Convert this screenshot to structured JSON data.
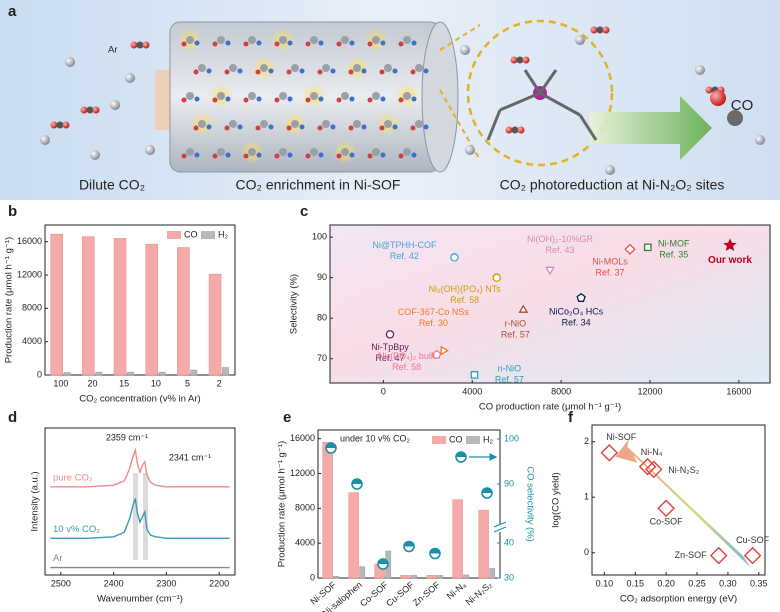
{
  "scheme": {
    "panel": "a",
    "ar": "Ar",
    "co": "CO",
    "captions": [
      "Dilute CO₂",
      "CO₂ enrichment in Ni-SOF",
      "CO₂ photoreduction at Ni-N₂O₂ sites"
    ]
  },
  "chart_data": [
    {
      "panel": "b",
      "type": "bar",
      "categories": [
        "100",
        "20",
        "15",
        "10",
        "5",
        "2"
      ],
      "series": [
        {
          "name": "CO",
          "color": "#f6a9a9",
          "values": [
            16900,
            16600,
            16400,
            15700,
            15300,
            12100
          ]
        },
        {
          "name": "H₂",
          "color": "#b8b8b8",
          "values": [
            300,
            350,
            350,
            350,
            600,
            900
          ]
        }
      ],
      "ylim": [
        0,
        18000
      ],
      "yticks": [
        0,
        4000,
        8000,
        12000,
        16000
      ],
      "xlabel": "CO₂ concentration (v% in Ar)",
      "ylabel": "Production rate (μmol h⁻¹ g⁻¹)",
      "legend": "top-right"
    },
    {
      "panel": "c",
      "type": "scatter",
      "points": [
        {
          "name": "Ni@TPHH-COF",
          "ref": "Ref. 42",
          "x": 3200,
          "y": 95,
          "color": "#3aa6d8",
          "marker": "circle"
        },
        {
          "name": "Ni₂(OH)(PO₄) NTs",
          "ref": "Ref. 58",
          "x": 5100,
          "y": 90,
          "color": "#c8a000",
          "marker": "circle"
        },
        {
          "name": "Ni(OH)₂-10%GR",
          "ref": "Ref. 43",
          "x": 7500,
          "y": 92,
          "color": "#d88aa8",
          "marker": "triangle-down"
        },
        {
          "name": "Ni-MOLs",
          "ref": "Ref. 37",
          "x": 11100,
          "y": 97,
          "color": "#e0504a",
          "marker": "diamond"
        },
        {
          "name": "Ni-MOF",
          "ref": "Ref. 35",
          "x": 11900,
          "y": 97.5,
          "color": "#2e7d32",
          "marker": "square"
        },
        {
          "name": "Our work",
          "x": 15600,
          "y": 98,
          "color": "#c0001c",
          "marker": "star"
        },
        {
          "name": "NiCo₂O₄ HCs",
          "ref": "Ref. 34",
          "x": 8900,
          "y": 85,
          "color": "#0a1a4a",
          "marker": "pentagon"
        },
        {
          "name": "r-NiO",
          "ref": "Ref. 57",
          "x": 6300,
          "y": 82,
          "color": "#b04a30",
          "marker": "triangle"
        },
        {
          "name": "COF-367-Co NSs",
          "ref": "Ref. 30",
          "x": 2700,
          "y": 72,
          "color": "#e87a20",
          "marker": "triangle-right"
        },
        {
          "name": "Ni-TpBpy",
          "ref": "Ref. 47",
          "x": 300,
          "y": 76,
          "color": "#6a1a5a",
          "marker": "circle"
        },
        {
          "name": "Ni₃(PO₄)₂ bulk",
          "ref": "Ref. 58",
          "x": 2400,
          "y": 71,
          "color": "#f07090",
          "marker": "pentagon"
        },
        {
          "name": "n-NiO",
          "ref": "Ref. 57",
          "x": 4100,
          "y": 66,
          "color": "#2aa0c0",
          "marker": "square"
        }
      ],
      "xlim": [
        -2400,
        17400
      ],
      "ylim": [
        64,
        103
      ],
      "xticks": [
        0,
        4000,
        8000,
        12000,
        16000
      ],
      "yticks": [
        70,
        80,
        90,
        100
      ],
      "xlabel": "CO production rate (μmol h⁻¹ g⁻¹)",
      "ylabel": "Selectivity (%)"
    },
    {
      "panel": "d",
      "type": "line",
      "x": [
        2520,
        2450,
        2400,
        2380,
        2370,
        2362,
        2359,
        2355,
        2350,
        2345,
        2341,
        2337,
        2330,
        2320,
        2300,
        2250,
        2180
      ],
      "series": [
        {
          "name": "pure CO₂",
          "color": "#f08a8a",
          "values": [
            6,
            6,
            6.1,
            6.4,
            7.2,
            8.2,
            8.5,
            7.6,
            7.0,
            7.5,
            7.7,
            6.8,
            6.3,
            6.1,
            6,
            6,
            6
          ]
        },
        {
          "name": "10 v% CO₂",
          "color": "#3a9ab8",
          "values": [
            2.5,
            2.5,
            2.6,
            2.9,
            3.8,
            4.9,
            5.2,
            4.2,
            3.6,
            4.0,
            4.3,
            3.1,
            2.7,
            2.6,
            2.5,
            2.5,
            2.5
          ]
        },
        {
          "name": "Ar",
          "color": "#888888",
          "values": [
            0.5,
            0.5,
            0.5,
            0.5,
            0.5,
            0.5,
            0.5,
            0.5,
            0.5,
            0.5,
            0.5,
            0.5,
            0.5,
            0.5,
            0.5,
            0.5,
            0.5
          ]
        }
      ],
      "xlim": [
        2530,
        2170
      ],
      "ylim": [
        0,
        10
      ],
      "xticks": [
        2500,
        2400,
        2300,
        2200
      ],
      "xlabel": "Wavenumber (cm⁻¹)",
      "ylabel": "Intensity (a.u.)",
      "annotations": [
        "2359 cm⁻¹",
        "2341 cm⁻¹"
      ]
    },
    {
      "panel": "e",
      "type": "bar",
      "categories": [
        "Ni-SOF",
        "Ni-salophen",
        "Co-SOF",
        "Cu-SOF",
        "Zn-SOF",
        "Ni-N₄",
        "Ni-N₂S₂"
      ],
      "series": [
        {
          "name": "CO",
          "color": "#f6a9a9",
          "values": [
            15600,
            9800,
            1600,
            300,
            300,
            9000,
            7800
          ]
        },
        {
          "name": "H₂",
          "color": "#b8b8b8",
          "values": [
            200,
            1300,
            3100,
            300,
            300,
            350,
            1100
          ]
        },
        {
          "axis": "y2",
          "color": "#1a8fa8",
          "values": [
            98,
            90,
            34,
            39,
            37,
            96,
            88
          ]
        }
      ],
      "ylim": [
        0,
        17000
      ],
      "yticks": [
        0,
        4000,
        8000,
        12000,
        16000
      ],
      "y2lim": [
        30,
        102
      ],
      "y2break": [
        42,
        82
      ],
      "y2ticks": [
        30,
        40,
        90,
        100
      ],
      "ylabel": "Production rate (μmol h⁻¹ g⁻¹)",
      "y2label": "CO selectivity (%)",
      "annotation": "under 10 v% CO₂",
      "legend": "top-right"
    },
    {
      "panel": "f",
      "type": "scatter",
      "points": [
        {
          "name": "Ni-SOF",
          "x": 0.108,
          "y": 1.8,
          "color": "#e04040",
          "marker": "diamond"
        },
        {
          "name": "Ni-N₄",
          "x": 0.17,
          "y": 1.55,
          "color": "#e04040",
          "marker": "diamond"
        },
        {
          "name": "Ni-N₂S₂",
          "x": 0.18,
          "y": 1.5,
          "color": "#e04040",
          "marker": "diamond"
        },
        {
          "name": "Co-SOF",
          "x": 0.2,
          "y": 0.8,
          "color": "#e04040",
          "marker": "diamond"
        },
        {
          "name": "Zn-SOF",
          "x": 0.285,
          "y": -0.05,
          "color": "#e04040",
          "marker": "diamond"
        },
        {
          "name": "Cu-SOF",
          "x": 0.34,
          "y": -0.05,
          "color": "#e04040",
          "marker": "diamond"
        }
      ],
      "xlim": [
        0.08,
        0.36
      ],
      "ylim": [
        -0.4,
        2.3
      ],
      "xticks": [
        {
          "value": 0.1,
          "label": "0.10"
        },
        0.15,
        {
          "value": 0.2,
          "label": "0.20"
        },
        0.25,
        {
          "value": 0.3,
          "label": "0.30"
        },
        0.35
      ],
      "yticks": [
        0,
        1,
        2
      ],
      "xlabel": "CO₂ adsorption energy (eV)",
      "ylabel": "log(CO yield)"
    }
  ]
}
